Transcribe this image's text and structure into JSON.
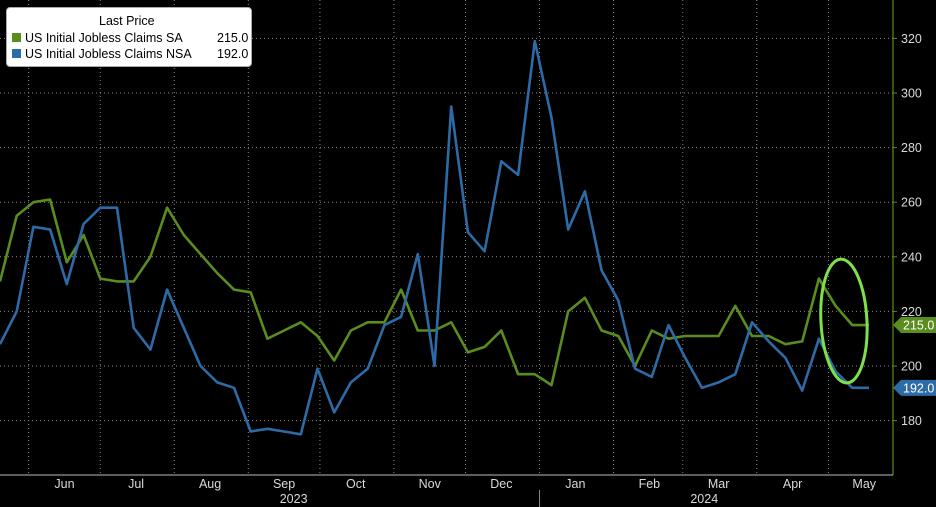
{
  "chart_data": {
    "type": "line",
    "legend": {
      "title": "Last Price",
      "placement": "top-left"
    },
    "x_months": [
      {
        "label": "Jun",
        "x": "2023-06-01"
      },
      {
        "label": "Jul",
        "x": "2023-07-01"
      },
      {
        "label": "Aug",
        "x": "2023-08-01"
      },
      {
        "label": "Sep",
        "x": "2023-09-01"
      },
      {
        "label": "Oct",
        "x": "2023-10-01"
      },
      {
        "label": "Nov",
        "x": "2023-11-01"
      },
      {
        "label": "Dec",
        "x": "2023-12-01"
      },
      {
        "label": "Jan",
        "x": "2024-01-01"
      },
      {
        "label": "Feb",
        "x": "2024-02-01"
      },
      {
        "label": "Mar",
        "x": "2024-03-01"
      },
      {
        "label": "Apr",
        "x": "2024-04-01"
      },
      {
        "label": "May",
        "x": "2024-05-01"
      }
    ],
    "x_years": [
      "2023",
      "2024"
    ],
    "y_axis": {
      "side": "right",
      "ticks": [
        180,
        200,
        220,
        240,
        260,
        280,
        300,
        320
      ],
      "range": [
        160,
        330
      ]
    },
    "grid": true,
    "series": [
      {
        "name": "US Initial Jobless Claims SA",
        "last_value": "215.0",
        "color": "#5a8c1e",
        "x": [
          "2023-05-20",
          "2023-05-27",
          "2023-06-03",
          "2023-06-10",
          "2023-06-17",
          "2023-06-24",
          "2023-07-01",
          "2023-07-08",
          "2023-07-15",
          "2023-07-22",
          "2023-07-29",
          "2023-08-05",
          "2023-08-12",
          "2023-08-19",
          "2023-08-26",
          "2023-09-02",
          "2023-09-09",
          "2023-09-16",
          "2023-09-23",
          "2023-09-30",
          "2023-10-07",
          "2023-10-14",
          "2023-10-21",
          "2023-10-28",
          "2023-11-04",
          "2023-11-11",
          "2023-11-18",
          "2023-11-25",
          "2023-12-02",
          "2023-12-09",
          "2023-12-16",
          "2023-12-23",
          "2023-12-30",
          "2024-01-06",
          "2024-01-13",
          "2024-01-20",
          "2024-01-27",
          "2024-02-03",
          "2024-02-10",
          "2024-02-17",
          "2024-02-24",
          "2024-03-02",
          "2024-03-09",
          "2024-03-16",
          "2024-03-23",
          "2024-03-30",
          "2024-04-06",
          "2024-04-13",
          "2024-04-20",
          "2024-04-27",
          "2024-05-04",
          "2024-05-11",
          "2024-05-18"
        ],
        "y": [
          231,
          255,
          260,
          261,
          238,
          248,
          232,
          231,
          231,
          240,
          258,
          248,
          241,
          234,
          228,
          227,
          210,
          213,
          216,
          211,
          202,
          213,
          216,
          216,
          228,
          213,
          213,
          216,
          205,
          207,
          213,
          197,
          197,
          193,
          220,
          225,
          213,
          211,
          200,
          213,
          210,
          211,
          211,
          211,
          222,
          211,
          211,
          208,
          209,
          232,
          222,
          215,
          215
        ]
      },
      {
        "name": "US Initial Jobless Claims NSA",
        "last_value": "192.0",
        "color": "#2d6ba6",
        "x": [
          "2023-05-20",
          "2023-05-27",
          "2023-06-03",
          "2023-06-10",
          "2023-06-17",
          "2023-06-24",
          "2023-07-01",
          "2023-07-08",
          "2023-07-15",
          "2023-07-22",
          "2023-07-29",
          "2023-08-05",
          "2023-08-12",
          "2023-08-19",
          "2023-08-26",
          "2023-09-02",
          "2023-09-09",
          "2023-09-16",
          "2023-09-23",
          "2023-09-30",
          "2023-10-07",
          "2023-10-14",
          "2023-10-21",
          "2023-10-28",
          "2023-11-04",
          "2023-11-11",
          "2023-11-18",
          "2023-11-25",
          "2023-12-02",
          "2023-12-09",
          "2023-12-16",
          "2023-12-23",
          "2023-12-30",
          "2024-01-06",
          "2024-01-13",
          "2024-01-20",
          "2024-01-27",
          "2024-02-03",
          "2024-02-10",
          "2024-02-17",
          "2024-02-24",
          "2024-03-02",
          "2024-03-09",
          "2024-03-16",
          "2024-03-23",
          "2024-03-30",
          "2024-04-06",
          "2024-04-13",
          "2024-04-20",
          "2024-04-27",
          "2024-05-04",
          "2024-05-11",
          "2024-05-18"
        ],
        "y": [
          208,
          220,
          251,
          250,
          230,
          252,
          258,
          258,
          214,
          206,
          228,
          214,
          200,
          194,
          192,
          176,
          177,
          176,
          175,
          199,
          183,
          194,
          199,
          215,
          218,
          241,
          200,
          295,
          249,
          242,
          275,
          270,
          319,
          291,
          250,
          264,
          235,
          224,
          199,
          196,
          215,
          203,
          192,
          194,
          197,
          216,
          209,
          203,
          191,
          210,
          198,
          192,
          192
        ]
      }
    ],
    "highlight": {
      "shape": "ellipse",
      "color": "#7ee04a",
      "x_from": "2024-04-27",
      "x_to": "2024-05-18"
    }
  }
}
